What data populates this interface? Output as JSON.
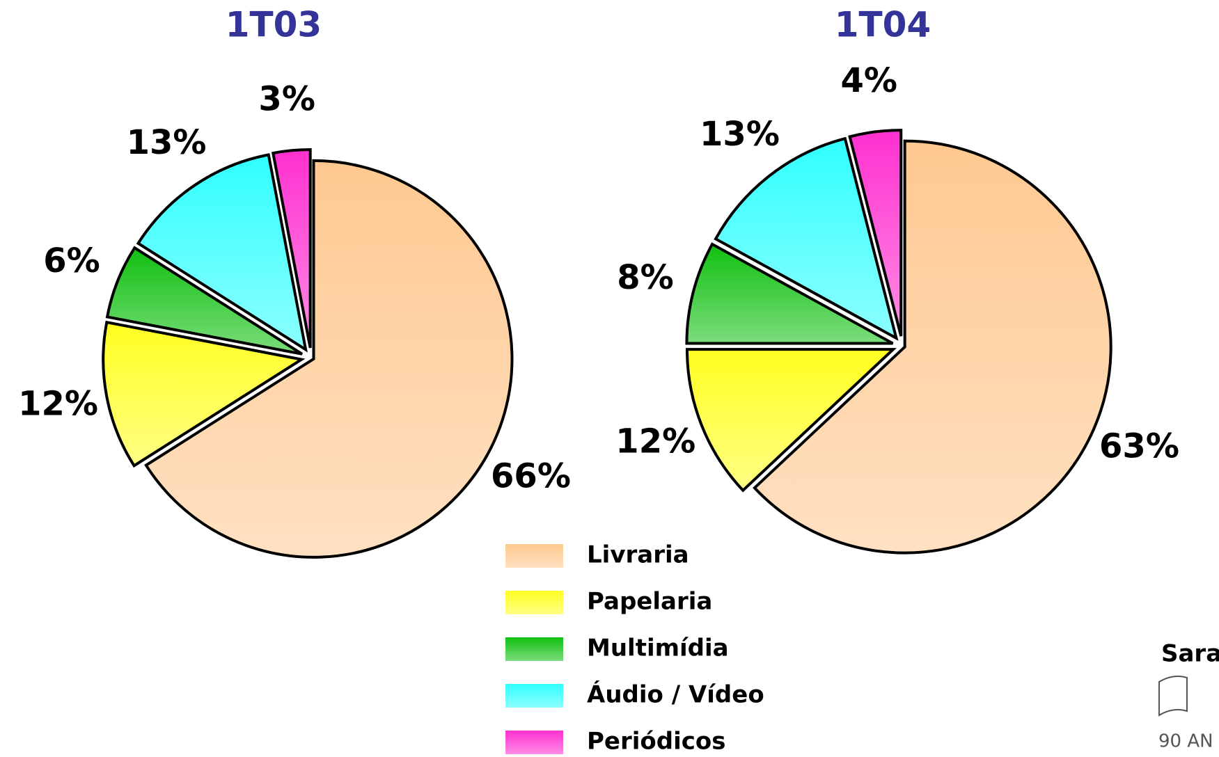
{
  "chart_data": [
    {
      "type": "pie",
      "title": "1T03",
      "values": [
        66,
        12,
        6,
        13,
        3
      ],
      "value_labels": [
        "66%",
        "12%",
        "6%",
        "13%",
        "3%"
      ]
    },
    {
      "type": "pie",
      "title": "1T04",
      "values": [
        63,
        12,
        8,
        13,
        4
      ],
      "value_labels": [
        "63%",
        "12%",
        "8%",
        "13%",
        "4%"
      ]
    }
  ],
  "legend": {
    "categories": [
      "Livraria",
      "Papelaria",
      "Multimídia",
      "Áudio / Vídeo",
      "Periódicos"
    ],
    "colors": [
      "#ffc890",
      "#ffff20",
      "#10c010",
      "#30ffff",
      "#ff30d0"
    ]
  },
  "logo": {
    "text": "Sara",
    "subtext": "90 AN"
  }
}
